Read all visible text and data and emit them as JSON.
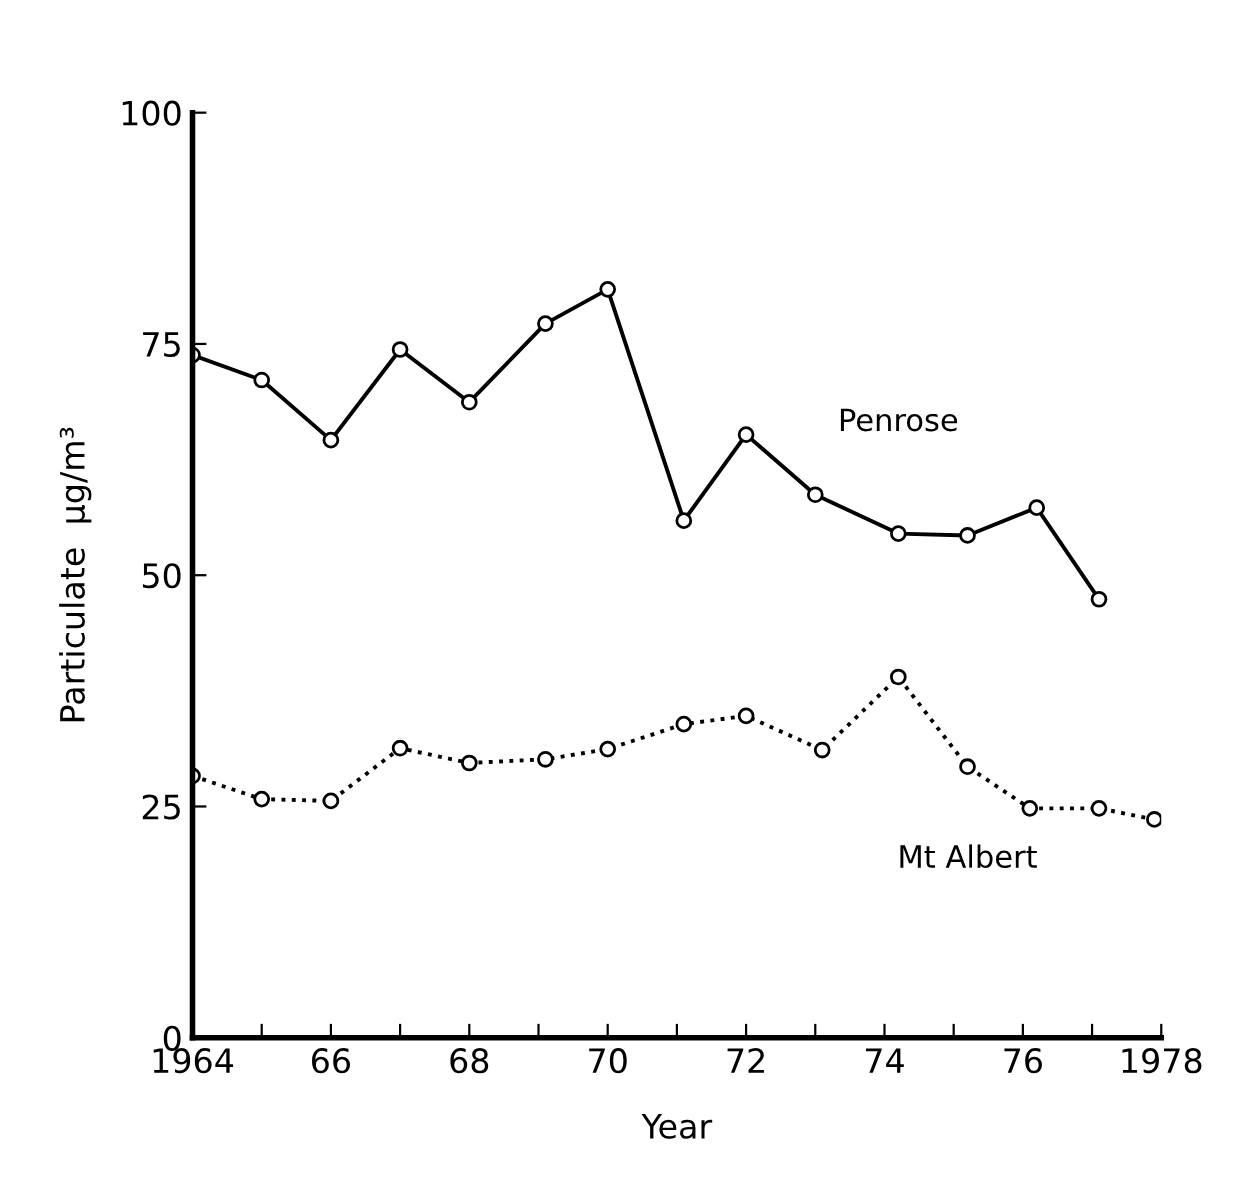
{
  "chart_data": {
    "type": "line",
    "xlabel": "Year",
    "ylabel": "Particulate  µg/m³",
    "xlim": [
      1964,
      1978
    ],
    "xticks": [
      1964,
      {
        "value": 1965,
        "label": null
      },
      {
        "value": 1966,
        "label": "66"
      },
      {
        "value": 1967,
        "label": null
      },
      {
        "value": 1968,
        "label": "68"
      },
      {
        "value": 1969,
        "label": null
      },
      {
        "value": 1970,
        "label": "70"
      },
      {
        "value": 1971,
        "label": null
      },
      {
        "value": 1972,
        "label": "72"
      },
      {
        "value": 1973,
        "label": null
      },
      {
        "value": 1974,
        "label": "74"
      },
      {
        "value": 1975,
        "label": null
      },
      {
        "value": 1976,
        "label": "76"
      },
      {
        "value": 1977,
        "label": null
      },
      1978
    ],
    "ylim": [
      0,
      100
    ],
    "yticks": [
      0,
      25,
      50,
      75,
      100
    ],
    "grid": false,
    "legend": false,
    "marker": "circle",
    "series": [
      {
        "name": "Penrose",
        "color": "#000000",
        "line_style": "solid",
        "x": [
          1964,
          1965,
          1966,
          1967,
          1968,
          1969.1,
          1970,
          1971.1,
          1972,
          1973,
          1974.2,
          1975.2,
          1976.2,
          1977.1
        ],
        "values": [
          73.8,
          71.1,
          64.6,
          74.4,
          68.7,
          77.2,
          80.9,
          55.9,
          65.2,
          58.7,
          54.5,
          54.3,
          57.3,
          47.4
        ]
      },
      {
        "name": "Mt Albert",
        "color": "#000000",
        "line_style": "dotted",
        "x": [
          1964,
          1965,
          1966,
          1967,
          1968,
          1969.1,
          1970,
          1971.1,
          1972,
          1973.1,
          1974.2,
          1975.2,
          1976.1,
          1977.1,
          1977.9
        ],
        "values": [
          28.3,
          25.8,
          25.6,
          31.3,
          29.7,
          30.1,
          31.2,
          33.9,
          34.8,
          31.1,
          39.0,
          29.3,
          24.8,
          24.8,
          23.6
        ]
      }
    ]
  }
}
